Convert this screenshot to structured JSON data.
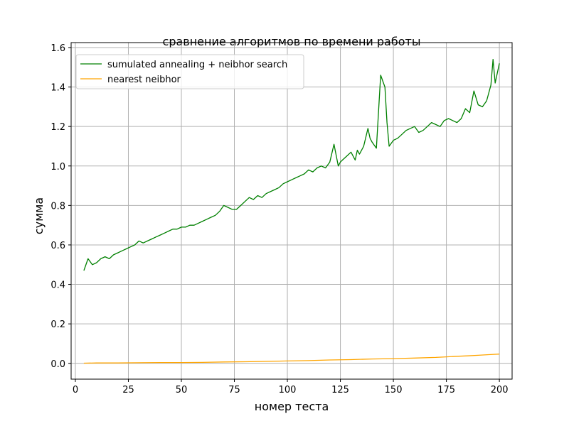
{
  "chart_data": {
    "type": "line",
    "title": "сравнение алгоритмов по времени работы",
    "xlabel": "номер теста",
    "ylabel": "сумма",
    "xlim": [
      -2,
      206
    ],
    "ylim": [
      -0.08,
      1.625
    ],
    "xticks": [
      0,
      25,
      50,
      75,
      100,
      125,
      150,
      175,
      200
    ],
    "yticks": [
      0.0,
      0.2,
      0.4,
      0.6,
      0.8,
      1.0,
      1.2,
      1.4,
      1.6
    ],
    "ytick_labels": [
      "0.0",
      "0.2",
      "0.4",
      "0.6",
      "0.8",
      "1.0",
      "1.2",
      "1.4",
      "1.6"
    ],
    "grid": true,
    "legend_position": "top-left",
    "series": [
      {
        "name": "sumulated annealing + neibhor search",
        "color": "#008000",
        "x": [
          4,
          6,
          8,
          10,
          12,
          14,
          16,
          18,
          20,
          22,
          24,
          26,
          28,
          30,
          32,
          34,
          36,
          38,
          40,
          42,
          44,
          46,
          48,
          50,
          52,
          54,
          56,
          58,
          60,
          62,
          64,
          66,
          68,
          70,
          72,
          74,
          76,
          78,
          80,
          82,
          84,
          86,
          88,
          90,
          92,
          94,
          96,
          98,
          100,
          102,
          104,
          106,
          108,
          110,
          112,
          114,
          116,
          118,
          120,
          122,
          124,
          125,
          126,
          128,
          130,
          132,
          133,
          134,
          136,
          138,
          139,
          140,
          142,
          144,
          146,
          147,
          148,
          150,
          152,
          154,
          156,
          158,
          160,
          162,
          164,
          166,
          168,
          170,
          172,
          174,
          176,
          178,
          180,
          182,
          184,
          186,
          188,
          190,
          192,
          194,
          196,
          197,
          198,
          200
        ],
        "values": [
          0.47,
          0.53,
          0.5,
          0.51,
          0.53,
          0.54,
          0.53,
          0.55,
          0.56,
          0.57,
          0.58,
          0.59,
          0.6,
          0.62,
          0.61,
          0.62,
          0.63,
          0.64,
          0.65,
          0.66,
          0.67,
          0.68,
          0.68,
          0.69,
          0.69,
          0.7,
          0.7,
          0.71,
          0.72,
          0.73,
          0.74,
          0.75,
          0.77,
          0.8,
          0.79,
          0.78,
          0.78,
          0.8,
          0.82,
          0.84,
          0.83,
          0.85,
          0.84,
          0.86,
          0.87,
          0.88,
          0.89,
          0.91,
          0.92,
          0.93,
          0.94,
          0.95,
          0.96,
          0.98,
          0.97,
          0.99,
          1.0,
          0.99,
          1.02,
          1.11,
          1.0,
          1.02,
          1.03,
          1.05,
          1.07,
          1.03,
          1.08,
          1.06,
          1.1,
          1.19,
          1.14,
          1.12,
          1.09,
          1.46,
          1.4,
          1.22,
          1.1,
          1.13,
          1.14,
          1.16,
          1.18,
          1.19,
          1.2,
          1.17,
          1.18,
          1.2,
          1.22,
          1.21,
          1.2,
          1.23,
          1.24,
          1.23,
          1.22,
          1.24,
          1.29,
          1.27,
          1.38,
          1.31,
          1.3,
          1.33,
          1.41,
          1.54,
          1.42,
          1.52
        ]
      },
      {
        "name": "nearest neibhor",
        "color": "#ffa500",
        "x": [
          4,
          10,
          20,
          30,
          40,
          50,
          60,
          70,
          80,
          90,
          100,
          110,
          120,
          130,
          140,
          150,
          160,
          170,
          175,
          180,
          185,
          190,
          195,
          200
        ],
        "values": [
          0.001,
          0.002,
          0.002,
          0.003,
          0.004,
          0.004,
          0.005,
          0.007,
          0.008,
          0.01,
          0.012,
          0.014,
          0.017,
          0.019,
          0.022,
          0.024,
          0.027,
          0.03,
          0.033,
          0.036,
          0.038,
          0.041,
          0.044,
          0.047
        ]
      }
    ]
  }
}
